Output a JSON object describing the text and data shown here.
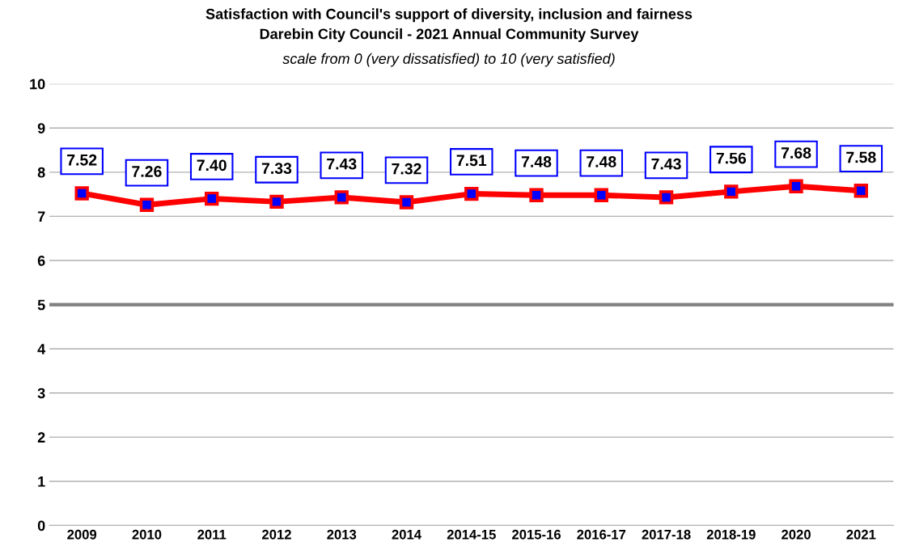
{
  "chart_data": {
    "type": "line",
    "title": "Satisfaction with Council's support of diversity, inclusion and fairness\nDarebin City Council - 2021 Annual Community Survey",
    "subtitle": "scale from 0 (very dissatisfied) to 10 (very satisfied)",
    "categories": [
      "2009",
      "2010",
      "2011",
      "2012",
      "2013",
      "2014",
      "2014-15",
      "2015-16",
      "2016-17",
      "2017-18",
      "2018-19",
      "2020",
      "2021"
    ],
    "series": [
      {
        "color": "#ff0000",
        "values": [
          7.52,
          7.26,
          7.4,
          7.33,
          7.43,
          7.32,
          7.51,
          7.48,
          7.48,
          7.43,
          7.56,
          7.68,
          7.58
        ],
        "value_labels": [
          "7.52",
          "7.26",
          "7.40",
          "7.33",
          "7.43",
          "7.32",
          "7.51",
          "7.48",
          "7.48",
          "7.43",
          "7.56",
          "7.68",
          "7.58"
        ]
      }
    ],
    "ylim": [
      0,
      10
    ],
    "yticks": [
      0,
      1,
      2,
      3,
      4,
      5,
      6,
      7,
      8,
      9,
      10
    ],
    "grid": "y",
    "marker": "square",
    "line_style": "solid",
    "ref_lines": [
      {
        "axis": "y",
        "value": 5,
        "label": null,
        "color": "#808080"
      }
    ]
  }
}
